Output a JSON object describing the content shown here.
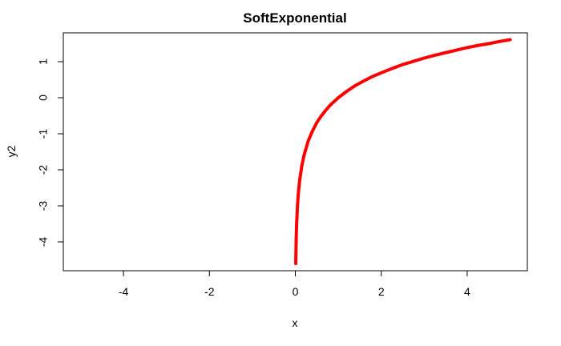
{
  "chart_data": {
    "type": "line",
    "title": "SoftExponential",
    "xlabel": "x",
    "ylabel": "y2",
    "xlim": [
      -5.4,
      5.4
    ],
    "ylim": [
      -4.8,
      1.8
    ],
    "x_ticks": [
      -4,
      -2,
      0,
      2,
      4
    ],
    "y_ticks": [
      -4,
      -3,
      -2,
      -1,
      0,
      1
    ],
    "x_tick_labels": [
      "-4",
      "-2",
      "0",
      "2",
      "4"
    ],
    "y_tick_labels": [
      "-4",
      "-3",
      "-2",
      "-1",
      "0",
      "1"
    ],
    "grid": false,
    "legend": "none",
    "series": [
      {
        "color": "#ff0000",
        "x": [
          0.01,
          0.02,
          0.03,
          0.05,
          0.07,
          0.1,
          0.15,
          0.2,
          0.3,
          0.4,
          0.5,
          0.6,
          0.7,
          0.8,
          0.9,
          1.0,
          1.2,
          1.4,
          1.6,
          1.8,
          2.0,
          2.25,
          2.5,
          2.75,
          3.0,
          3.25,
          3.5,
          3.75,
          4.0,
          4.25,
          4.5,
          4.75,
          5.0
        ],
        "y": [
          -4.6,
          -3.91,
          -3.51,
          -3.0,
          -2.66,
          -2.3,
          -1.9,
          -1.61,
          -1.2,
          -0.92,
          -0.69,
          -0.51,
          -0.36,
          -0.22,
          -0.11,
          0.0,
          0.18,
          0.34,
          0.47,
          0.59,
          0.69,
          0.81,
          0.92,
          1.01,
          1.1,
          1.18,
          1.25,
          1.32,
          1.39,
          1.45,
          1.5,
          1.56,
          1.61
        ]
      }
    ]
  }
}
